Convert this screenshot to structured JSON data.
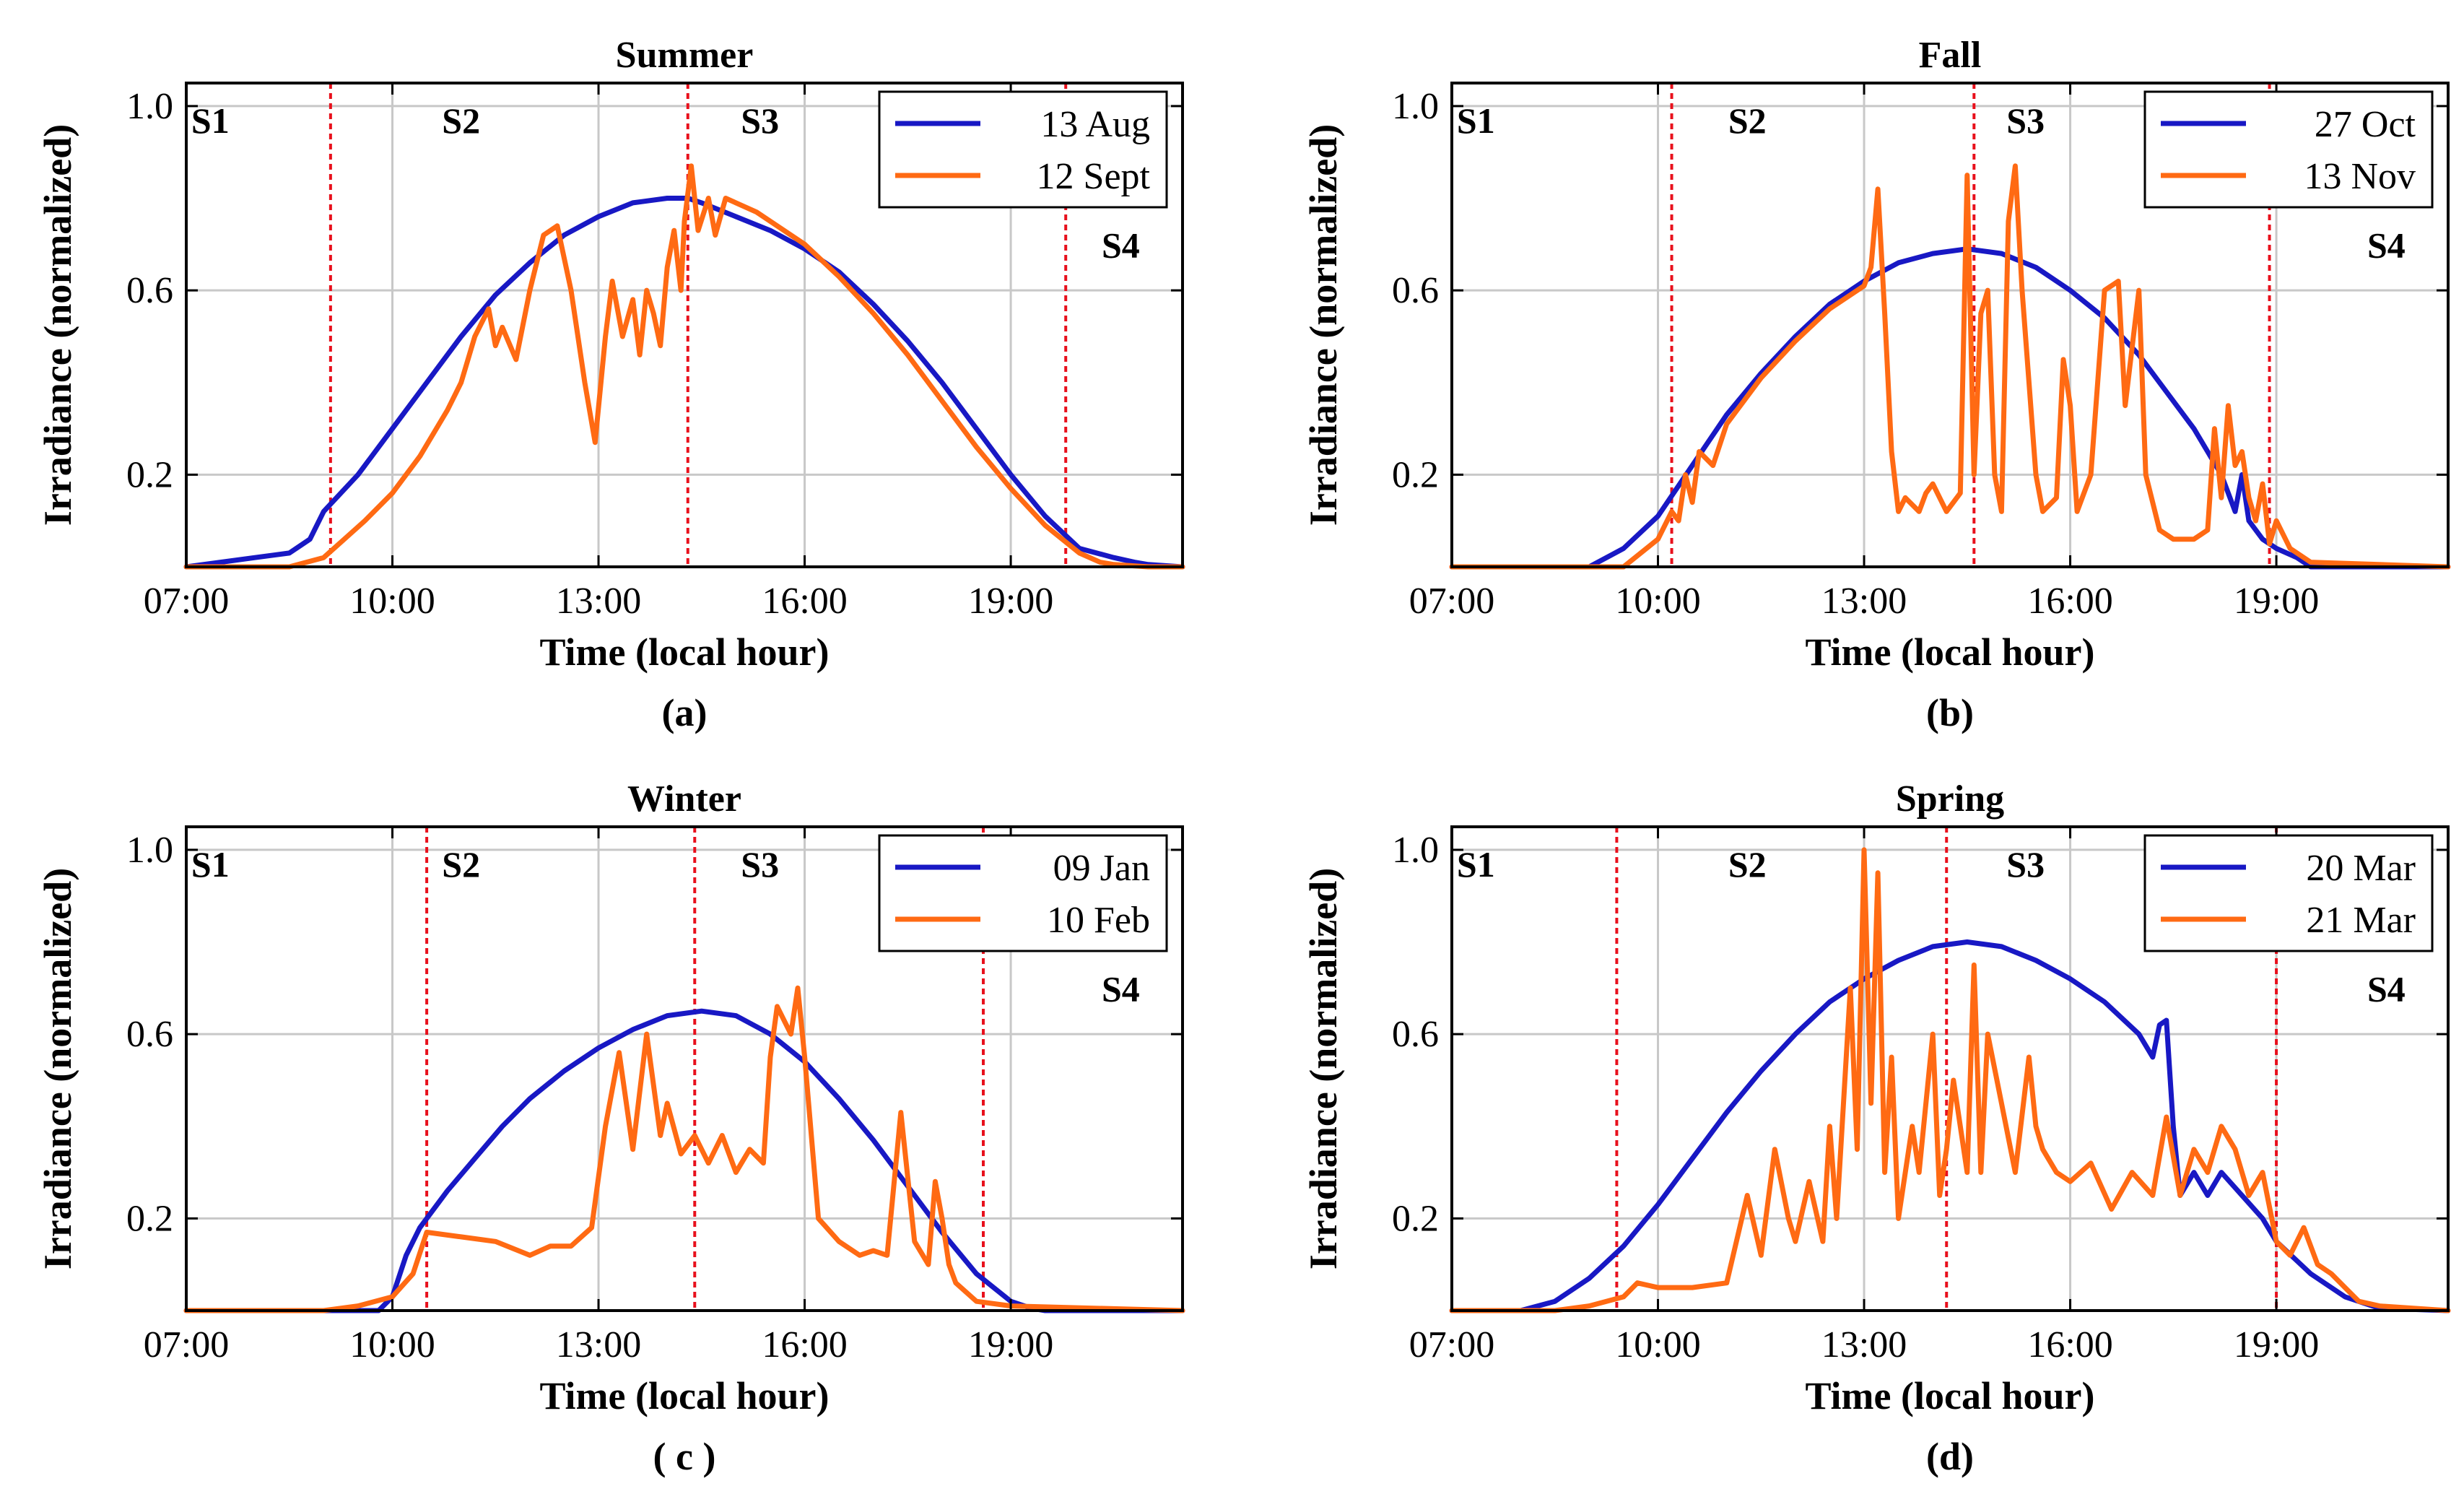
{
  "figure": {
    "y_axis_label": "Irradiance (normalized)",
    "x_axis_label": "Time (local hour)"
  },
  "chart_data": [
    {
      "type": "line",
      "panel_id": "a",
      "title": "Summer",
      "caption": "(a)",
      "xlabel": "Time (local hour)",
      "ylabel": "Irradiance (normalized)",
      "xlim": [
        7,
        21.5
      ],
      "ylim": [
        0,
        1.05
      ],
      "xticks": [
        7,
        10,
        13,
        16,
        19
      ],
      "xtick_labels": [
        "07:00",
        "10:00",
        "13:00",
        "16:00",
        "19:00"
      ],
      "yticks": [
        0.2,
        0.6,
        1.0
      ],
      "ytick_labels": [
        "0.2",
        "0.6",
        "1.0"
      ],
      "grid": true,
      "legend": "top-right",
      "regions": [
        {
          "label": "S1",
          "x": 7.35,
          "y": 0.97
        },
        {
          "label": "S2",
          "x": 11.0,
          "y": 0.97
        },
        {
          "label": "S3",
          "x": 15.35,
          "y": 0.97
        },
        {
          "label": "S4",
          "x": 20.6,
          "y": 0.7
        }
      ],
      "boundaries": [
        9.1,
        14.3,
        19.8
      ],
      "series": [
        {
          "name": "13 Aug",
          "color": "#1818c4",
          "x": [
            7.0,
            7.5,
            8.0,
            8.5,
            8.8,
            9.0,
            9.5,
            10.0,
            10.5,
            11.0,
            11.5,
            12.0,
            12.5,
            13.0,
            13.5,
            14.0,
            14.3,
            14.5,
            15.0,
            15.5,
            16.0,
            16.5,
            17.0,
            17.5,
            18.0,
            18.5,
            19.0,
            19.5,
            20.0,
            20.5,
            20.8,
            21.0,
            21.5
          ],
          "y": [
            0.0,
            0.01,
            0.02,
            0.03,
            0.06,
            0.12,
            0.2,
            0.3,
            0.4,
            0.5,
            0.59,
            0.66,
            0.72,
            0.76,
            0.79,
            0.8,
            0.8,
            0.79,
            0.76,
            0.73,
            0.69,
            0.64,
            0.57,
            0.49,
            0.4,
            0.3,
            0.2,
            0.11,
            0.04,
            0.02,
            0.01,
            0.005,
            0.0
          ]
        },
        {
          "name": "12 Sept",
          "color": "#ff6a13",
          "x": [
            7.0,
            8.5,
            9.0,
            9.3,
            9.6,
            10.0,
            10.4,
            10.8,
            11.0,
            11.2,
            11.4,
            11.5,
            11.6,
            11.8,
            12.0,
            12.2,
            12.4,
            12.6,
            12.8,
            12.95,
            13.1,
            13.2,
            13.35,
            13.5,
            13.6,
            13.7,
            13.8,
            13.9,
            14.0,
            14.1,
            14.2,
            14.25,
            14.35,
            14.45,
            14.6,
            14.7,
            14.85,
            15.0,
            15.3,
            15.6,
            16.0,
            16.5,
            17.0,
            17.5,
            18.0,
            18.5,
            19.0,
            19.5,
            20.0,
            20.3,
            20.5,
            21.0,
            21.5
          ],
          "y": [
            0.0,
            0.0,
            0.02,
            0.06,
            0.1,
            0.16,
            0.24,
            0.34,
            0.4,
            0.5,
            0.56,
            0.48,
            0.52,
            0.45,
            0.6,
            0.72,
            0.74,
            0.6,
            0.4,
            0.27,
            0.5,
            0.62,
            0.5,
            0.58,
            0.46,
            0.6,
            0.55,
            0.48,
            0.65,
            0.73,
            0.6,
            0.75,
            0.87,
            0.73,
            0.8,
            0.72,
            0.8,
            0.79,
            0.77,
            0.74,
            0.7,
            0.63,
            0.55,
            0.46,
            0.36,
            0.26,
            0.17,
            0.09,
            0.03,
            0.01,
            0.005,
            0.0,
            0.0
          ]
        }
      ]
    },
    {
      "type": "line",
      "panel_id": "b",
      "title": "Fall",
      "caption": "(b)",
      "xlabel": "Time (local hour)",
      "ylabel": "Irradiance (normalized)",
      "xlim": [
        7,
        21.5
      ],
      "ylim": [
        0,
        1.05
      ],
      "xticks": [
        7,
        10,
        13,
        16,
        19
      ],
      "xtick_labels": [
        "07:00",
        "10:00",
        "13:00",
        "16:00",
        "19:00"
      ],
      "yticks": [
        0.2,
        0.6,
        1.0
      ],
      "ytick_labels": [
        "0.2",
        "0.6",
        "1.0"
      ],
      "grid": true,
      "legend": "top-right",
      "regions": [
        {
          "label": "S1",
          "x": 7.35,
          "y": 0.97
        },
        {
          "label": "S2",
          "x": 11.3,
          "y": 0.97
        },
        {
          "label": "S3",
          "x": 15.35,
          "y": 0.97
        },
        {
          "label": "S4",
          "x": 20.6,
          "y": 0.7
        }
      ],
      "boundaries": [
        10.2,
        14.6,
        18.9
      ],
      "series": [
        {
          "name": "27 Oct",
          "color": "#1818c4",
          "x": [
            7.0,
            9.0,
            9.5,
            10.0,
            10.5,
            11.0,
            11.5,
            12.0,
            12.5,
            13.0,
            13.5,
            14.0,
            14.5,
            15.0,
            15.5,
            16.0,
            16.5,
            17.0,
            17.5,
            17.8,
            18.0,
            18.2,
            18.4,
            18.5,
            18.6,
            18.8,
            19.0,
            19.3,
            19.5,
            20.0,
            21.5
          ],
          "y": [
            0.0,
            0.0,
            0.04,
            0.11,
            0.22,
            0.33,
            0.42,
            0.5,
            0.57,
            0.62,
            0.66,
            0.68,
            0.69,
            0.68,
            0.65,
            0.6,
            0.54,
            0.46,
            0.36,
            0.3,
            0.25,
            0.2,
            0.12,
            0.2,
            0.1,
            0.06,
            0.04,
            0.02,
            0.0,
            0.0,
            0.0
          ]
        },
        {
          "name": "13 Nov",
          "color": "#ff6a13",
          "x": [
            7.0,
            9.5,
            10.0,
            10.2,
            10.3,
            10.4,
            10.5,
            10.6,
            10.8,
            11.0,
            11.5,
            12.0,
            12.5,
            13.0,
            13.1,
            13.2,
            13.3,
            13.4,
            13.5,
            13.6,
            13.8,
            13.9,
            14.0,
            14.2,
            14.4,
            14.5,
            14.6,
            14.7,
            14.8,
            14.9,
            15.0,
            15.1,
            15.2,
            15.3,
            15.5,
            15.6,
            15.8,
            15.9,
            16.0,
            16.1,
            16.3,
            16.5,
            16.7,
            16.8,
            17.0,
            17.1,
            17.3,
            17.5,
            17.8,
            18.0,
            18.1,
            18.2,
            18.3,
            18.4,
            18.5,
            18.6,
            18.7,
            18.8,
            18.9,
            19.0,
            19.2,
            19.5,
            21.5
          ],
          "y": [
            0.0,
            0.0,
            0.06,
            0.12,
            0.1,
            0.2,
            0.14,
            0.25,
            0.22,
            0.31,
            0.41,
            0.49,
            0.56,
            0.61,
            0.65,
            0.82,
            0.55,
            0.25,
            0.12,
            0.15,
            0.12,
            0.16,
            0.18,
            0.12,
            0.16,
            0.85,
            0.2,
            0.55,
            0.6,
            0.2,
            0.12,
            0.75,
            0.87,
            0.6,
            0.2,
            0.12,
            0.15,
            0.45,
            0.35,
            0.12,
            0.2,
            0.6,
            0.62,
            0.35,
            0.6,
            0.2,
            0.08,
            0.06,
            0.06,
            0.08,
            0.3,
            0.15,
            0.35,
            0.22,
            0.25,
            0.15,
            0.1,
            0.18,
            0.05,
            0.1,
            0.04,
            0.01,
            0.0
          ]
        }
      ]
    },
    {
      "type": "line",
      "panel_id": "c",
      "title": "Winter",
      "caption": "( c )",
      "xlabel": "Time (local hour)",
      "ylabel": "Irradiance (normalized)",
      "xlim": [
        7,
        21.5
      ],
      "ylim": [
        0,
        1.05
      ],
      "xticks": [
        7,
        10,
        13,
        16,
        19
      ],
      "xtick_labels": [
        "07:00",
        "10:00",
        "13:00",
        "16:00",
        "19:00"
      ],
      "yticks": [
        0.2,
        0.6,
        1.0
      ],
      "ytick_labels": [
        "0.2",
        "0.6",
        "1.0"
      ],
      "grid": true,
      "legend": "top-right",
      "regions": [
        {
          "label": "S1",
          "x": 7.35,
          "y": 0.97
        },
        {
          "label": "S2",
          "x": 11.0,
          "y": 0.97
        },
        {
          "label": "S3",
          "x": 15.35,
          "y": 0.97
        },
        {
          "label": "S4",
          "x": 20.6,
          "y": 0.7
        }
      ],
      "boundaries": [
        10.5,
        14.4,
        18.6
      ],
      "series": [
        {
          "name": "09 Jan",
          "color": "#1818c4",
          "x": [
            7.0,
            9.8,
            10.0,
            10.2,
            10.4,
            10.8,
            11.2,
            11.6,
            12.0,
            12.5,
            13.0,
            13.5,
            14.0,
            14.5,
            15.0,
            15.5,
            16.0,
            16.5,
            17.0,
            17.5,
            18.0,
            18.5,
            19.0,
            19.3,
            19.5,
            21.5
          ],
          "y": [
            0.0,
            0.0,
            0.03,
            0.12,
            0.18,
            0.26,
            0.33,
            0.4,
            0.46,
            0.52,
            0.57,
            0.61,
            0.64,
            0.65,
            0.64,
            0.6,
            0.54,
            0.46,
            0.37,
            0.27,
            0.17,
            0.08,
            0.02,
            0.005,
            0.0,
            0.0
          ]
        },
        {
          "name": "10 Feb",
          "color": "#ff6a13",
          "x": [
            7.0,
            9.0,
            9.5,
            10.0,
            10.3,
            10.5,
            11.0,
            11.5,
            12.0,
            12.3,
            12.6,
            12.9,
            13.1,
            13.3,
            13.5,
            13.7,
            13.9,
            14.0,
            14.2,
            14.4,
            14.6,
            14.8,
            15.0,
            15.2,
            15.4,
            15.5,
            15.6,
            15.8,
            15.9,
            16.0,
            16.2,
            16.5,
            16.8,
            17.0,
            17.2,
            17.4,
            17.6,
            17.8,
            17.9,
            18.0,
            18.1,
            18.2,
            18.5,
            19.0,
            21.5
          ],
          "y": [
            0.0,
            0.0,
            0.01,
            0.03,
            0.08,
            0.17,
            0.16,
            0.15,
            0.12,
            0.14,
            0.14,
            0.18,
            0.4,
            0.56,
            0.35,
            0.6,
            0.38,
            0.45,
            0.34,
            0.38,
            0.32,
            0.38,
            0.3,
            0.35,
            0.32,
            0.55,
            0.66,
            0.6,
            0.7,
            0.55,
            0.2,
            0.15,
            0.12,
            0.13,
            0.12,
            0.43,
            0.15,
            0.1,
            0.28,
            0.2,
            0.1,
            0.06,
            0.02,
            0.01,
            0.0
          ]
        }
      ]
    },
    {
      "type": "line",
      "panel_id": "d",
      "title": "Spring",
      "caption": "(d)",
      "xlabel": "Time (local hour)",
      "ylabel": "Irradiance (normalized)",
      "xlim": [
        7,
        21.5
      ],
      "ylim": [
        0,
        1.05
      ],
      "xticks": [
        7,
        10,
        13,
        16,
        19
      ],
      "xtick_labels": [
        "07:00",
        "10:00",
        "13:00",
        "16:00",
        "19:00"
      ],
      "yticks": [
        0.2,
        0.6,
        1.0
      ],
      "ytick_labels": [
        "0.2",
        "0.6",
        "1.0"
      ],
      "grid": true,
      "legend": "top-right",
      "regions": [
        {
          "label": "S1",
          "x": 7.35,
          "y": 0.97
        },
        {
          "label": "S2",
          "x": 11.3,
          "y": 0.97
        },
        {
          "label": "S3",
          "x": 15.35,
          "y": 0.97
        },
        {
          "label": "S4",
          "x": 20.6,
          "y": 0.7
        }
      ],
      "boundaries": [
        9.4,
        14.2,
        19.0
      ],
      "series": [
        {
          "name": "20 Mar",
          "color": "#1818c4",
          "x": [
            7.0,
            8.0,
            8.5,
            9.0,
            9.5,
            10.0,
            10.5,
            11.0,
            11.5,
            12.0,
            12.5,
            13.0,
            13.5,
            14.0,
            14.5,
            15.0,
            15.5,
            16.0,
            16.5,
            17.0,
            17.2,
            17.3,
            17.4,
            17.5,
            17.6,
            17.8,
            18.0,
            18.2,
            18.5,
            18.8,
            19.0,
            19.5,
            20.0,
            20.5,
            21.5
          ],
          "y": [
            0.0,
            0.0,
            0.02,
            0.07,
            0.14,
            0.23,
            0.33,
            0.43,
            0.52,
            0.6,
            0.67,
            0.72,
            0.76,
            0.79,
            0.8,
            0.79,
            0.76,
            0.72,
            0.67,
            0.6,
            0.55,
            0.62,
            0.63,
            0.4,
            0.25,
            0.3,
            0.25,
            0.3,
            0.25,
            0.2,
            0.15,
            0.08,
            0.03,
            0.005,
            0.0
          ]
        },
        {
          "name": "21 Mar",
          "color": "#ff6a13",
          "x": [
            7.0,
            8.5,
            9.0,
            9.5,
            9.7,
            10.0,
            10.5,
            11.0,
            11.3,
            11.5,
            11.7,
            11.9,
            12.0,
            12.2,
            12.4,
            12.5,
            12.6,
            12.8,
            12.9,
            13.0,
            13.1,
            13.2,
            13.3,
            13.4,
            13.5,
            13.7,
            13.8,
            14.0,
            14.1,
            14.2,
            14.3,
            14.5,
            14.6,
            14.7,
            14.8,
            15.0,
            15.2,
            15.4,
            15.5,
            15.6,
            15.8,
            16.0,
            16.3,
            16.6,
            16.9,
            17.2,
            17.4,
            17.6,
            17.8,
            18.0,
            18.2,
            18.4,
            18.6,
            18.8,
            19.0,
            19.2,
            19.4,
            19.6,
            19.8,
            20.0,
            20.2,
            20.5,
            21.5
          ],
          "y": [
            0.0,
            0.0,
            0.01,
            0.03,
            0.06,
            0.05,
            0.05,
            0.06,
            0.25,
            0.12,
            0.35,
            0.2,
            0.15,
            0.28,
            0.15,
            0.4,
            0.2,
            0.7,
            0.35,
            1.0,
            0.45,
            0.95,
            0.3,
            0.55,
            0.2,
            0.4,
            0.3,
            0.6,
            0.25,
            0.35,
            0.5,
            0.3,
            0.75,
            0.3,
            0.6,
            0.45,
            0.3,
            0.55,
            0.4,
            0.35,
            0.3,
            0.28,
            0.32,
            0.22,
            0.3,
            0.25,
            0.42,
            0.25,
            0.35,
            0.3,
            0.4,
            0.35,
            0.25,
            0.3,
            0.15,
            0.12,
            0.18,
            0.1,
            0.08,
            0.05,
            0.02,
            0.01,
            0.0
          ]
        }
      ]
    }
  ]
}
